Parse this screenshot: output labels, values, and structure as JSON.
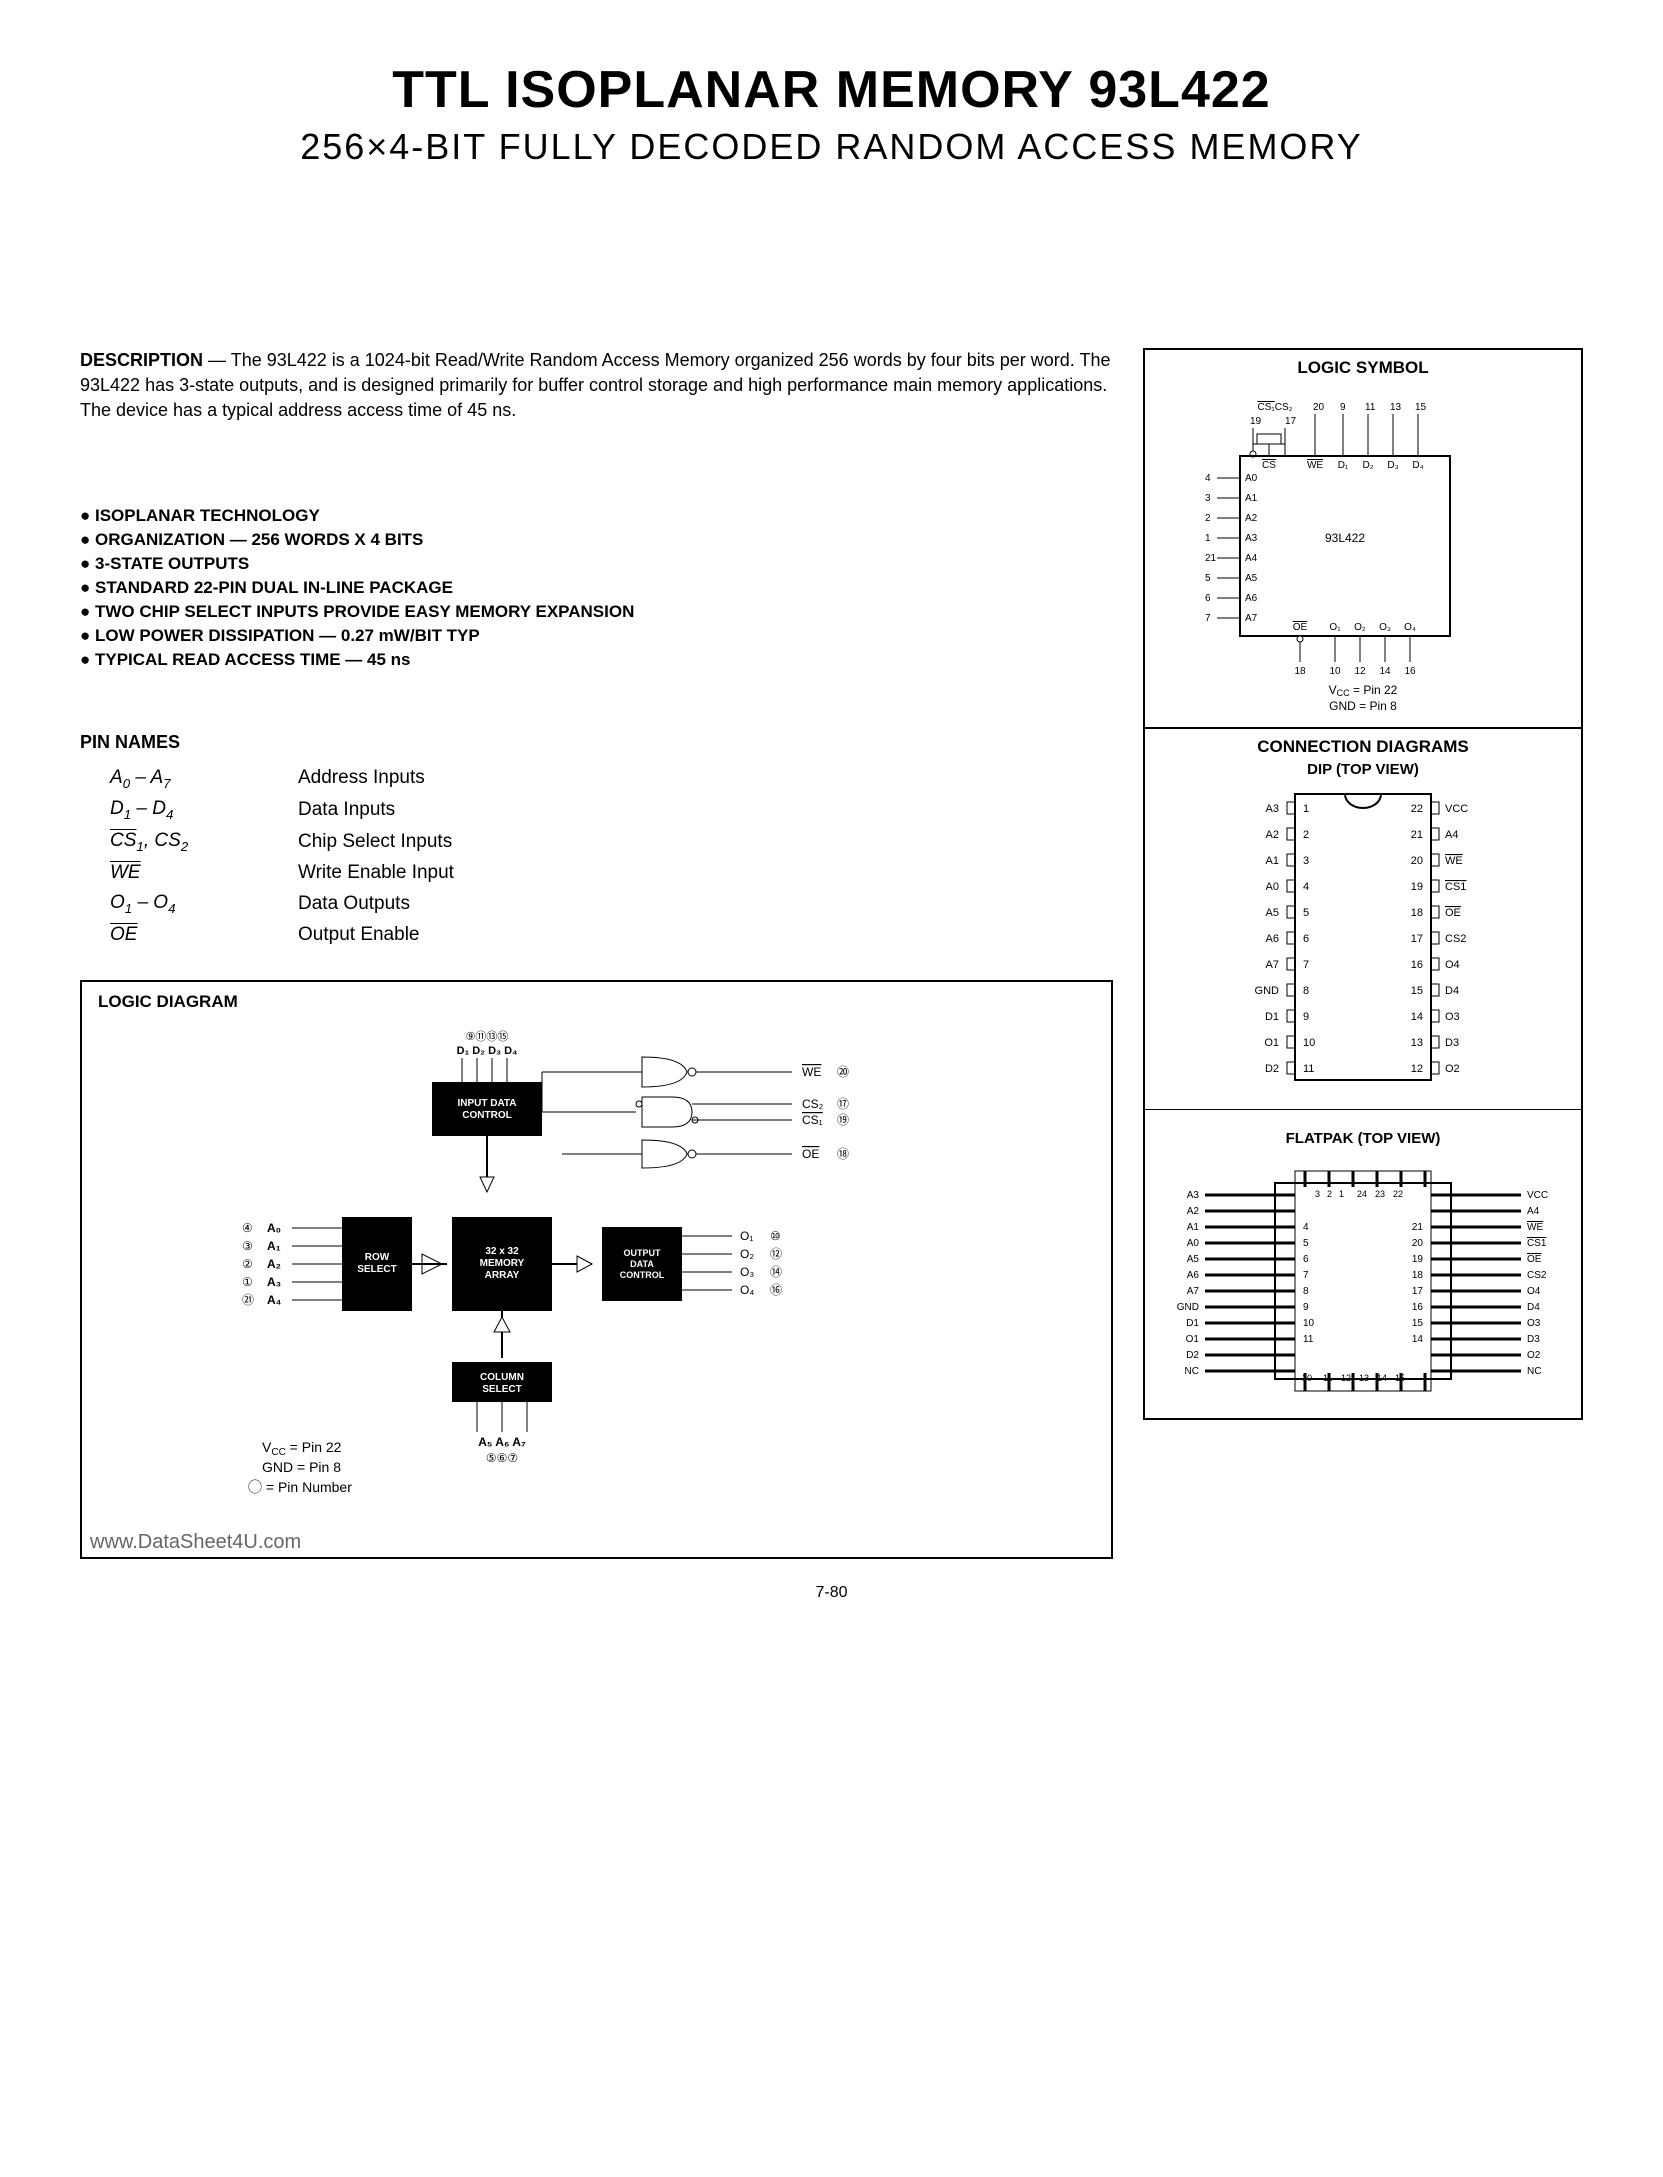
{
  "title": "TTL ISOPLANAR MEMORY 93L422",
  "subtitle": "256×4-BIT FULLY DECODED RANDOM ACCESS MEMORY",
  "description_label": "DESCRIPTION",
  "description_text": " — The 93L422 is a 1024-bit Read/Write Random Access Memory organized 256 words by four bits per word. The 93L422 has 3-state outputs, and is designed primarily for buffer control storage and high performance main memory applications. The device has a typical address access time of 45 ns.",
  "features": [
    "ISOPLANAR TECHNOLOGY",
    "ORGANIZATION — 256 WORDS X 4 BITS",
    "3-STATE OUTPUTS",
    "STANDARD 22-PIN DUAL IN-LINE PACKAGE",
    "TWO CHIP SELECT INPUTS PROVIDE EASY MEMORY EXPANSION",
    "LOW POWER DISSIPATION — 0.27 mW/BIT TYP",
    "TYPICAL READ ACCESS TIME — 45 ns"
  ],
  "pin_names_title": "PIN NAMES",
  "pin_names": [
    {
      "sym": "A0 – A7",
      "desc": "Address Inputs"
    },
    {
      "sym": "D1 – D4",
      "desc": "Data Inputs"
    },
    {
      "sym": "CS1, CS2",
      "desc": "Chip Select Inputs"
    },
    {
      "sym": "WE",
      "desc": "Write Enable Input"
    },
    {
      "sym": "O1 – O4",
      "desc": "Data Outputs"
    },
    {
      "sym": "OE",
      "desc": "Output Enable"
    }
  ],
  "logic_diagram_title": "LOGIC DIAGRAM",
  "logic_symbol_title": "LOGIC SYMBOL",
  "connection_title": "CONNECTION DIAGRAMS",
  "dip_label": "DIP (TOP VIEW)",
  "flatpak_label": "FLATPAK (TOP VIEW)",
  "vcc_note": "VCC = Pin 22",
  "gnd_note": "GND = Pin 8",
  "pin_number_note": "⃝ = Pin Number",
  "page_num": "7-80",
  "footer_url": "www.DataSheet4U.com",
  "dip_pins_left": [
    {
      "n": "1",
      "l": "A3"
    },
    {
      "n": "2",
      "l": "A2"
    },
    {
      "n": "3",
      "l": "A1"
    },
    {
      "n": "4",
      "l": "A0"
    },
    {
      "n": "5",
      "l": "A5"
    },
    {
      "n": "6",
      "l": "A6"
    },
    {
      "n": "7",
      "l": "A7"
    },
    {
      "n": "8",
      "l": "GND"
    },
    {
      "n": "9",
      "l": "D1"
    },
    {
      "n": "10",
      "l": "O1"
    },
    {
      "n": "11",
      "l": "D2"
    }
  ],
  "dip_pins_right": [
    {
      "n": "22",
      "l": "VCC"
    },
    {
      "n": "21",
      "l": "A4"
    },
    {
      "n": "20",
      "l": "WE",
      "ov": true
    },
    {
      "n": "19",
      "l": "CS1",
      "ov": true
    },
    {
      "n": "18",
      "l": "OE",
      "ov": true
    },
    {
      "n": "17",
      "l": "CS2"
    },
    {
      "n": "16",
      "l": "O4"
    },
    {
      "n": "15",
      "l": "D4"
    },
    {
      "n": "14",
      "l": "O3"
    },
    {
      "n": "13",
      "l": "D3"
    },
    {
      "n": "12",
      "l": "O2"
    }
  ],
  "flatpak_left": [
    "A3",
    "A2",
    "A1",
    "A0",
    "A5",
    "A6",
    "A7",
    "GND",
    "D1",
    "O1",
    "D2",
    "NC"
  ],
  "flatpak_right": [
    "VCC",
    "A4",
    "WE",
    "CS1",
    "OE",
    "CS2",
    "O4",
    "D4",
    "O3",
    "D3",
    "O2",
    "NC"
  ],
  "logic_symbol": {
    "chip": "93L422",
    "top_pins": [
      "19",
      "17",
      "20",
      "9",
      "11",
      "13",
      "15"
    ],
    "top_labels": [
      "CS1",
      "CS2",
      "",
      "",
      "",
      " ",
      ""
    ],
    "top_inner": [
      "CS",
      "WE",
      "D1",
      "D2",
      "D3",
      "D4"
    ],
    "left_pins": [
      "4",
      "3",
      "2",
      "1",
      "21",
      "5",
      "6",
      "7"
    ],
    "left_labels": [
      "A0",
      "A1",
      "A2",
      "A3",
      "A4",
      "A5",
      "A6",
      "A7"
    ],
    "bot_inner": [
      "OE",
      "O1",
      "O2",
      "O3",
      "O4"
    ],
    "bot_pins": [
      "18",
      "10",
      "12",
      "14",
      "16"
    ]
  },
  "logic_blocks": {
    "input_ctrl": "INPUT DATA CONTROL",
    "row_sel": "ROW SELECT",
    "mem": "32 x 32 MEMORY ARRAY",
    "out_ctrl": "OUTPUT DATA CONTROL",
    "col_sel": "COLUMN SELECT"
  }
}
